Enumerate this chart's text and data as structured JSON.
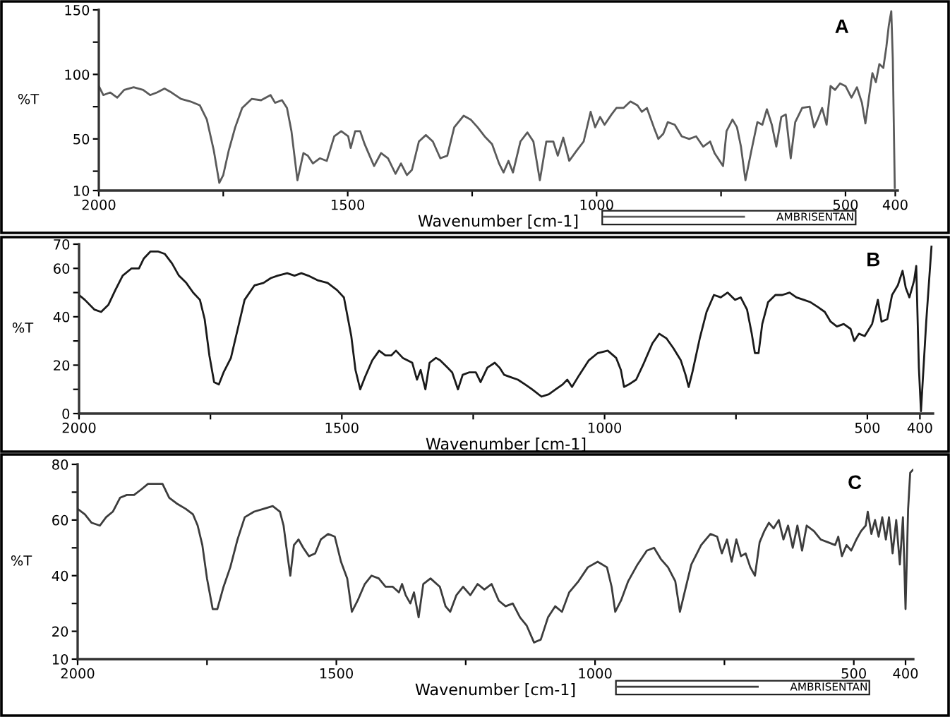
{
  "chart_data": [
    {
      "type": "line",
      "xlabel": "Wavenumber [cm-1]",
      "ylabel": "%T",
      "annotations": [
        "A"
      ],
      "legend": "bottom right",
      "xlim": [
        2000,
        395
      ],
      "xticks": [
        2000,
        {
          "value": 1750,
          "label": null
        },
        1500,
        {
          "value": 1250,
          "label": null
        },
        1000,
        {
          "value": 750,
          "label": null
        },
        500,
        400
      ],
      "ylim": [
        10,
        150
      ],
      "yticks": [
        10,
        {
          "value": 25,
          "label": null
        },
        50,
        {
          "value": 75,
          "label": null
        },
        100,
        {
          "value": 125,
          "label": null
        },
        150
      ],
      "x": [
        2000,
        1991,
        1977,
        1963,
        1949,
        1930,
        1911,
        1897,
        1883,
        1868,
        1854,
        1835,
        1816,
        1797,
        1783,
        1769,
        1758,
        1750,
        1739,
        1726,
        1712,
        1693,
        1674,
        1655,
        1646,
        1632,
        1622,
        1613,
        1601,
        1589,
        1580,
        1570,
        1556,
        1542,
        1527,
        1513,
        1499,
        1494,
        1485,
        1475,
        1466,
        1456,
        1447,
        1433,
        1419,
        1404,
        1393,
        1381,
        1371,
        1357,
        1343,
        1329,
        1314,
        1300,
        1286,
        1267,
        1253,
        1239,
        1225,
        1210,
        1196,
        1187,
        1177,
        1168,
        1153,
        1139,
        1127,
        1114,
        1101,
        1087,
        1078,
        1067,
        1055,
        1040,
        1026,
        1012,
        1003,
        993,
        984,
        970,
        960,
        946,
        932,
        918,
        909,
        899,
        885,
        876,
        866,
        857,
        843,
        829,
        814,
        800,
        786,
        772,
        763,
        746,
        739,
        727,
        718,
        710,
        701,
        689,
        677,
        667,
        658,
        648,
        639,
        629,
        620,
        610,
        601,
        587,
        572,
        563,
        556,
        547,
        538,
        530,
        521,
        511,
        500,
        488,
        477,
        467,
        460,
        453,
        446,
        439,
        432,
        424,
        418,
        413,
        408,
        405,
        401
      ],
      "series": [
        {
          "name": "AMBRISENTAN",
          "color": "#5a5a5a",
          "values": [
            91,
            84,
            86,
            82,
            88,
            90,
            88,
            84,
            86,
            89,
            86,
            81,
            79,
            76,
            65,
            41,
            16,
            22,
            41,
            59,
            74,
            81,
            80,
            84,
            78,
            80,
            74,
            56,
            18,
            39,
            37,
            31,
            35,
            33,
            52,
            56,
            52,
            43,
            56,
            56,
            46,
            37,
            29,
            39,
            35,
            23,
            31,
            22,
            26,
            48,
            53,
            48,
            35,
            37,
            59,
            68,
            65,
            59,
            52,
            46,
            31,
            24,
            33,
            24,
            48,
            55,
            48,
            18,
            48,
            48,
            37,
            51,
            33,
            41,
            48,
            71,
            59,
            67,
            61,
            69,
            74,
            74,
            79,
            76,
            71,
            74,
            59,
            50,
            54,
            63,
            61,
            52,
            50,
            52,
            44,
            48,
            39,
            29,
            56,
            65,
            59,
            44,
            18,
            41,
            63,
            61,
            73,
            61,
            44,
            67,
            69,
            35,
            63,
            74,
            75,
            59,
            65,
            74,
            61,
            91,
            88,
            93,
            91,
            82,
            90,
            78,
            62,
            82,
            101,
            94,
            108,
            105,
            121,
            138,
            149,
            112,
            12
          ]
        }
      ]
    },
    {
      "type": "line",
      "xlabel": "Wavenumber [cm-1]",
      "ylabel": "%T",
      "annotations": [
        "B"
      ],
      "xlim": [
        2000,
        375
      ],
      "xticks": [
        2000,
        {
          "value": 1750,
          "label": null
        },
        1500,
        {
          "value": 1250,
          "label": null
        },
        1000,
        {
          "value": 750,
          "label": null
        },
        500,
        400
      ],
      "ylim": [
        0,
        70
      ],
      "yticks": [
        0,
        {
          "value": 10,
          "label": null
        },
        20,
        {
          "value": 30,
          "label": null
        },
        40,
        {
          "value": 50,
          "label": null
        },
        60,
        70
      ],
      "x": [
        2000,
        1989,
        1971,
        1958,
        1944,
        1931,
        1917,
        1900,
        1886,
        1877,
        1864,
        1850,
        1837,
        1823,
        1810,
        1796,
        1783,
        1770,
        1761,
        1752,
        1743,
        1734,
        1725,
        1711,
        1698,
        1685,
        1666,
        1649,
        1635,
        1622,
        1604,
        1590,
        1577,
        1564,
        1545,
        1527,
        1509,
        1496,
        1482,
        1474,
        1465,
        1456,
        1442,
        1429,
        1417,
        1406,
        1397,
        1384,
        1366,
        1357,
        1350,
        1341,
        1333,
        1321,
        1313,
        1299,
        1290,
        1279,
        1270,
        1258,
        1245,
        1236,
        1223,
        1209,
        1200,
        1191,
        1178,
        1165,
        1151,
        1138,
        1120,
        1106,
        1093,
        1080,
        1071,
        1062,
        1048,
        1030,
        1013,
        994,
        978,
        969,
        963,
        954,
        940,
        927,
        909,
        896,
        882,
        869,
        855,
        846,
        840,
        833,
        819,
        806,
        792,
        779,
        766,
        752,
        741,
        729,
        720,
        714,
        707,
        700,
        689,
        675,
        662,
        648,
        635,
        621,
        608,
        594,
        581,
        570,
        558,
        545,
        532,
        525,
        516,
        505,
        491,
        480,
        473,
        462,
        453,
        442,
        433,
        427,
        420,
        411,
        407,
        402,
        398,
        388,
        378
      ],
      "series": [
        {
          "color": "#1a1a1a",
          "values": [
            49,
            47,
            43,
            42,
            45,
            51,
            57,
            60,
            60,
            64,
            67,
            67,
            66,
            62,
            57,
            54,
            50,
            47,
            39,
            24,
            13,
            12,
            17,
            23,
            35,
            47,
            53,
            54,
            56,
            57,
            58,
            57,
            58,
            57,
            55,
            54,
            51,
            48,
            32,
            18,
            10,
            15,
            22,
            26,
            24,
            24,
            26,
            23,
            21,
            14,
            18,
            10,
            21,
            23,
            22,
            19,
            17,
            10,
            16,
            17,
            17,
            13,
            19,
            21,
            19,
            16,
            15,
            14,
            12,
            10,
            7,
            8,
            10,
            12,
            14,
            11,
            16,
            22,
            25,
            26,
            23,
            18,
            11,
            12,
            14,
            20,
            29,
            33,
            31,
            27,
            22,
            16,
            11,
            17,
            31,
            42,
            49,
            48,
            50,
            47,
            48,
            43,
            33,
            25,
            25,
            37,
            46,
            49,
            49,
            50,
            48,
            47,
            46,
            44,
            42,
            38,
            36,
            37,
            35,
            30,
            33,
            32,
            37,
            47,
            38,
            39,
            49,
            53,
            59,
            52,
            48,
            55,
            61,
            19,
            1,
            38,
            69
          ]
        }
      ]
    },
    {
      "type": "line",
      "xlabel": "Wavenumber [cm-1]",
      "ylabel": "%T",
      "annotations": [
        "C"
      ],
      "legend": "bottom right",
      "xlim": [
        2000,
        385
      ],
      "xticks": [
        2000,
        {
          "value": 1750,
          "label": null
        },
        1500,
        {
          "value": 1250,
          "label": null
        },
        1000,
        {
          "value": 750,
          "label": null
        },
        500,
        400
      ],
      "ylim": [
        10,
        80
      ],
      "yticks": [
        10,
        20,
        {
          "value": 30,
          "label": null
        },
        40,
        {
          "value": 50,
          "label": null
        },
        60,
        {
          "value": 70,
          "label": null
        },
        80
      ],
      "x": [
        2000,
        1986,
        1973,
        1957,
        1945,
        1932,
        1918,
        1905,
        1891,
        1877,
        1864,
        1850,
        1836,
        1823,
        1809,
        1791,
        1777,
        1768,
        1759,
        1750,
        1739,
        1730,
        1718,
        1705,
        1691,
        1677,
        1659,
        1641,
        1623,
        1609,
        1602,
        1595,
        1589,
        1582,
        1573,
        1564,
        1553,
        1541,
        1530,
        1516,
        1503,
        1491,
        1479,
        1470,
        1459,
        1445,
        1432,
        1418,
        1405,
        1391,
        1379,
        1373,
        1366,
        1357,
        1350,
        1341,
        1332,
        1318,
        1300,
        1289,
        1280,
        1268,
        1255,
        1241,
        1227,
        1214,
        1200,
        1186,
        1173,
        1159,
        1145,
        1132,
        1118,
        1105,
        1091,
        1077,
        1064,
        1050,
        1032,
        1014,
        995,
        977,
        968,
        961,
        950,
        936,
        918,
        900,
        886,
        873,
        859,
        845,
        836,
        827,
        814,
        795,
        777,
        764,
        755,
        745,
        736,
        727,
        718,
        709,
        700,
        691,
        682,
        673,
        664,
        655,
        645,
        636,
        627,
        618,
        609,
        600,
        591,
        577,
        564,
        550,
        536,
        530,
        523,
        514,
        505,
        495,
        486,
        477,
        473,
        466,
        459,
        452,
        445,
        438,
        432,
        425,
        418,
        411,
        405,
        400,
        395,
        391,
        386
      ],
      "series": [
        {
          "name": "AMBRISENTAN",
          "color": "#3c3c3c",
          "values": [
            64,
            62,
            59,
            58,
            61,
            63,
            68,
            69,
            69,
            71,
            73,
            73,
            73,
            68,
            66,
            64,
            62,
            58,
            51,
            39,
            28,
            28,
            36,
            43,
            53,
            61,
            63,
            64,
            65,
            63,
            58,
            48,
            40,
            51,
            53,
            50,
            47,
            48,
            53,
            55,
            54,
            45,
            39,
            27,
            31,
            37,
            40,
            39,
            36,
            36,
            34,
            37,
            33,
            30,
            34,
            25,
            37,
            39,
            36,
            29,
            27,
            33,
            36,
            33,
            37,
            35,
            37,
            31,
            29,
            30,
            25,
            22,
            16,
            17,
            25,
            29,
            27,
            34,
            38,
            43,
            45,
            43,
            36,
            27,
            31,
            38,
            44,
            49,
            50,
            46,
            43,
            38,
            27,
            34,
            44,
            51,
            55,
            54,
            48,
            53,
            45,
            53,
            47,
            48,
            43,
            40,
            52,
            56,
            59,
            57,
            60,
            53,
            58,
            50,
            58,
            49,
            58,
            56,
            53,
            52,
            51,
            54,
            47,
            51,
            49,
            53,
            56,
            58,
            63,
            55,
            60,
            54,
            61,
            53,
            61,
            48,
            60,
            44,
            61,
            28,
            64,
            77,
            78
          ]
        }
      ]
    }
  ]
}
